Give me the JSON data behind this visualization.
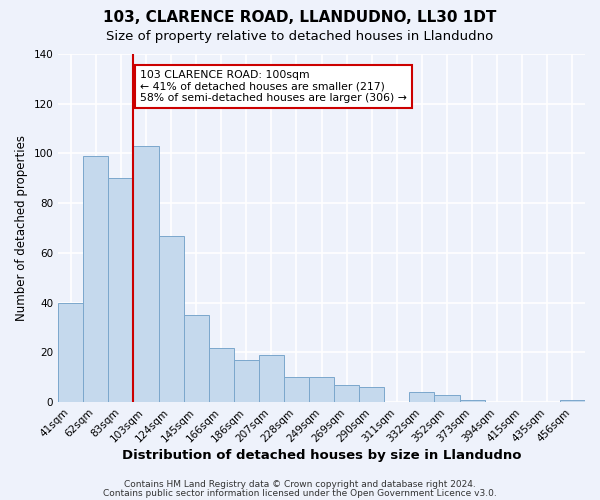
{
  "title": "103, CLARENCE ROAD, LLANDUDNO, LL30 1DT",
  "subtitle": "Size of property relative to detached houses in Llandudno",
  "xlabel": "Distribution of detached houses by size in Llandudno",
  "ylabel": "Number of detached properties",
  "footer_line1": "Contains HM Land Registry data © Crown copyright and database right 2024.",
  "footer_line2": "Contains public sector information licensed under the Open Government Licence v3.0.",
  "bin_labels": [
    "41sqm",
    "62sqm",
    "83sqm",
    "103sqm",
    "124sqm",
    "145sqm",
    "166sqm",
    "186sqm",
    "207sqm",
    "228sqm",
    "249sqm",
    "269sqm",
    "290sqm",
    "311sqm",
    "332sqm",
    "352sqm",
    "373sqm",
    "394sqm",
    "415sqm",
    "435sqm",
    "456sqm"
  ],
  "bar_values": [
    40,
    99,
    90,
    103,
    67,
    35,
    22,
    17,
    19,
    10,
    10,
    7,
    6,
    0,
    4,
    3,
    1,
    0,
    0,
    0,
    1
  ],
  "bar_color": "#c5d9ed",
  "bar_edge_color": "#7ba7cc",
  "bar_edge_width": 0.7,
  "vline_color": "#cc0000",
  "annotation_line1": "103 CLARENCE ROAD: 100sqm",
  "annotation_line2": "← 41% of detached houses are smaller (217)",
  "annotation_line3": "58% of semi-detached houses are larger (306) →",
  "ylim": [
    0,
    140
  ],
  "yticks": [
    0,
    20,
    40,
    60,
    80,
    100,
    120,
    140
  ],
  "background_color": "#eef2fb",
  "plot_background_color": "#eef2fb",
  "grid_color": "#ffffff",
  "title_fontsize": 11,
  "subtitle_fontsize": 9.5,
  "xlabel_fontsize": 9.5,
  "ylabel_fontsize": 8.5,
  "tick_fontsize": 7.5,
  "footer_fontsize": 6.5
}
